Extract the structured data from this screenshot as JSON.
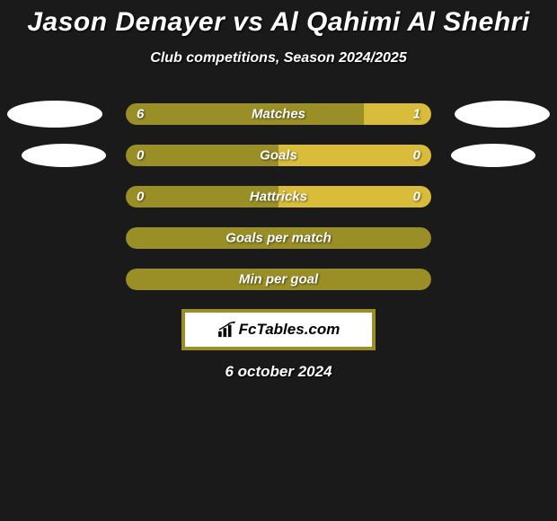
{
  "title": "Jason Denayer vs Al Qahimi Al Shehri",
  "subtitle": "Club competitions, Season 2024/2025",
  "colors": {
    "left": "#9a8f27",
    "right": "#d9bd3a",
    "background": "#1a1a1a",
    "logo_border": "#9a8f27"
  },
  "rows": [
    {
      "label": "Matches",
      "left_val": "6",
      "right_val": "1",
      "left_pct": 78,
      "right_pct": 22,
      "show_vals": true,
      "ellipse": "big"
    },
    {
      "label": "Goals",
      "left_val": "0",
      "right_val": "0",
      "left_pct": 50,
      "right_pct": 50,
      "show_vals": true,
      "ellipse": "small"
    },
    {
      "label": "Hattricks",
      "left_val": "0",
      "right_val": "0",
      "left_pct": 50,
      "right_pct": 50,
      "show_vals": true,
      "ellipse": "none"
    },
    {
      "label": "Goals per match",
      "left_val": "",
      "right_val": "",
      "left_pct": 100,
      "right_pct": 0,
      "show_vals": false,
      "ellipse": "none",
      "full": true
    },
    {
      "label": "Min per goal",
      "left_val": "",
      "right_val": "",
      "left_pct": 100,
      "right_pct": 0,
      "show_vals": false,
      "ellipse": "none",
      "full": true
    }
  ],
  "logo_text": "FcTables.com",
  "date": "6 october 2024"
}
